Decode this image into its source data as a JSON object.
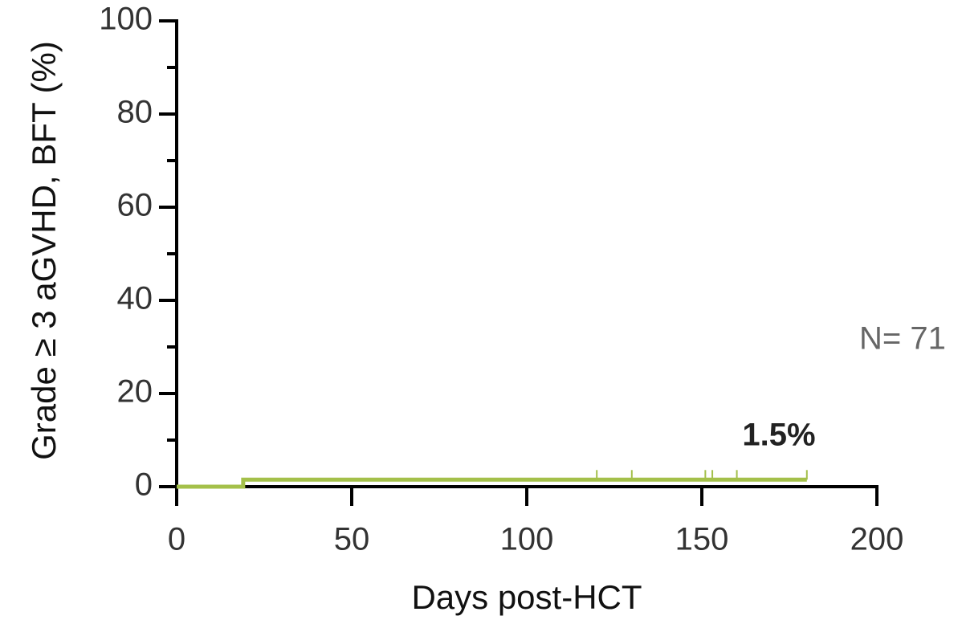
{
  "chart_data": {
    "type": "step",
    "x_label": "Days post-HCT",
    "y_label": "Grade ≥ 3 aGVHD, BFT (%)",
    "x": [
      0,
      19,
      180
    ],
    "values": [
      0,
      1.5,
      1.5
    ],
    "color": "#a4c04a",
    "censor": {
      "x": [
        120,
        130,
        151,
        153,
        160,
        180
      ],
      "values": [
        1.5,
        1.5,
        1.5,
        1.5,
        1.5,
        1.5
      ]
    },
    "xlim": [
      0,
      200
    ],
    "xticks": [
      0,
      50,
      100,
      150,
      200
    ],
    "ylim": [
      0,
      100
    ],
    "yticks": [
      0,
      20,
      40,
      60,
      80,
      100
    ],
    "yminorticks": [
      10,
      30,
      50,
      70,
      90
    ],
    "annotations": [
      {
        "text": "1.5%"
      },
      {
        "text": "N= 71"
      }
    ]
  }
}
